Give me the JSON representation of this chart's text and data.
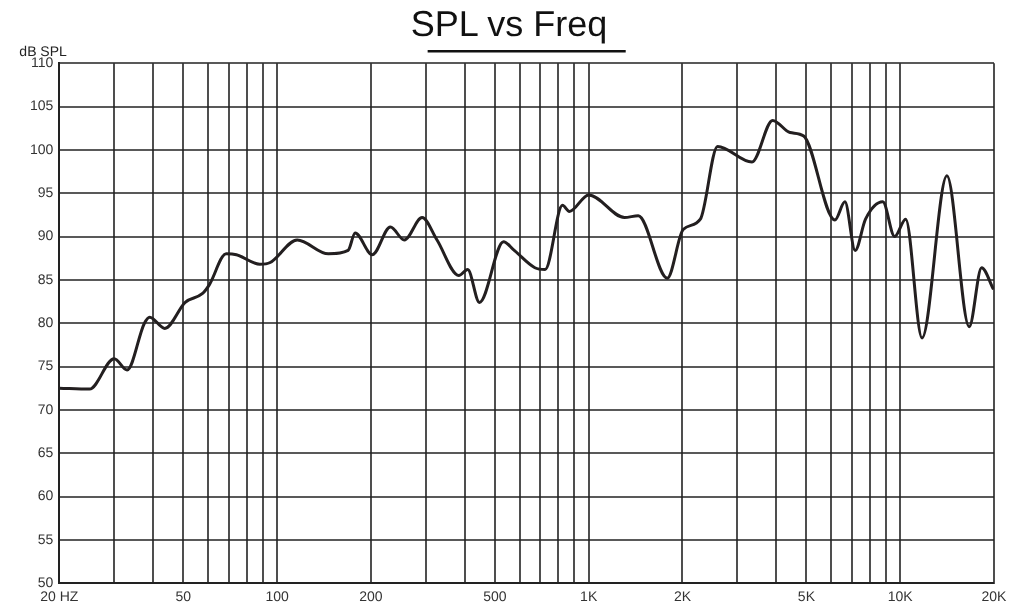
{
  "chart_data": {
    "type": "line",
    "title": "SPL vs Freq",
    "ylabel": "dB SPL",
    "color": "#231f20",
    "log": "x",
    "grid": true,
    "legend": false,
    "marker": "none",
    "line_style": "solid",
    "xlim": [
      20,
      20000
    ],
    "ylim": [
      50,
      110
    ],
    "xticks": [
      {
        "value": 20,
        "label": "20 HZ"
      },
      {
        "value": 30,
        "label": null
      },
      {
        "value": 40,
        "label": null
      },
      50,
      {
        "value": 60,
        "label": null
      },
      {
        "value": 70,
        "label": null
      },
      {
        "value": 80,
        "label": null
      },
      {
        "value": 90,
        "label": null
      },
      100,
      200,
      {
        "value": 300,
        "label": null
      },
      {
        "value": 400,
        "label": null
      },
      500,
      {
        "value": 600,
        "label": null
      },
      {
        "value": 700,
        "label": null
      },
      {
        "value": 800,
        "label": null
      },
      {
        "value": 900,
        "label": null
      },
      {
        "value": 1000,
        "label": "1K"
      },
      {
        "value": 2000,
        "label": "2K"
      },
      {
        "value": 3000,
        "label": null
      },
      {
        "value": 4000,
        "label": null
      },
      {
        "value": 5000,
        "label": "5K"
      },
      {
        "value": 6000,
        "label": null
      },
      {
        "value": 7000,
        "label": null
      },
      {
        "value": 8000,
        "label": null
      },
      {
        "value": 9000,
        "label": null
      },
      {
        "value": 10000,
        "label": "10K"
      },
      {
        "value": 20000,
        "label": "20K"
      }
    ],
    "yticks": [
      50,
      55,
      60,
      65,
      70,
      75,
      80,
      85,
      90,
      95,
      100,
      105,
      110
    ],
    "x": [
      20,
      25,
      30,
      33,
      37.5,
      39,
      43.6,
      50.7,
      57.5,
      60.5,
      68.6,
      74,
      88,
      95,
      116,
      146,
      169,
      178,
      202,
      231,
      256,
      292,
      326,
      383,
      409,
      446,
      533,
      577,
      672,
      725,
      824,
      867,
      1000,
      1303,
      1443,
      1788,
      2010,
      2283,
      2593,
      3343,
      3895,
      4428,
      4900,
      6170,
      6645,
      7167,
      7739,
      8790,
      9596,
      10410,
      11750,
      14120,
      16650,
      18250,
      19930
    ],
    "values": [
      72.5,
      72.4,
      75.9,
      74.6,
      80.0,
      80.7,
      79.4,
      82.4,
      83.4,
      84.4,
      88.0,
      87.9,
      86.8,
      87.0,
      89.6,
      88.0,
      88.4,
      90.4,
      87.9,
      91.1,
      89.6,
      92.2,
      89.6,
      85.5,
      86.2,
      82.4,
      89.4,
      88.4,
      86.4,
      86.2,
      93.6,
      92.9,
      94.8,
      92.2,
      92.4,
      85.2,
      90.8,
      92.0,
      100.4,
      98.6,
      103.4,
      102.0,
      101.6,
      91.9,
      94.0,
      88.4,
      92.0,
      94.0,
      90.0,
      92.0,
      78.3,
      97.0,
      79.6,
      86.4,
      83.9
    ]
  }
}
